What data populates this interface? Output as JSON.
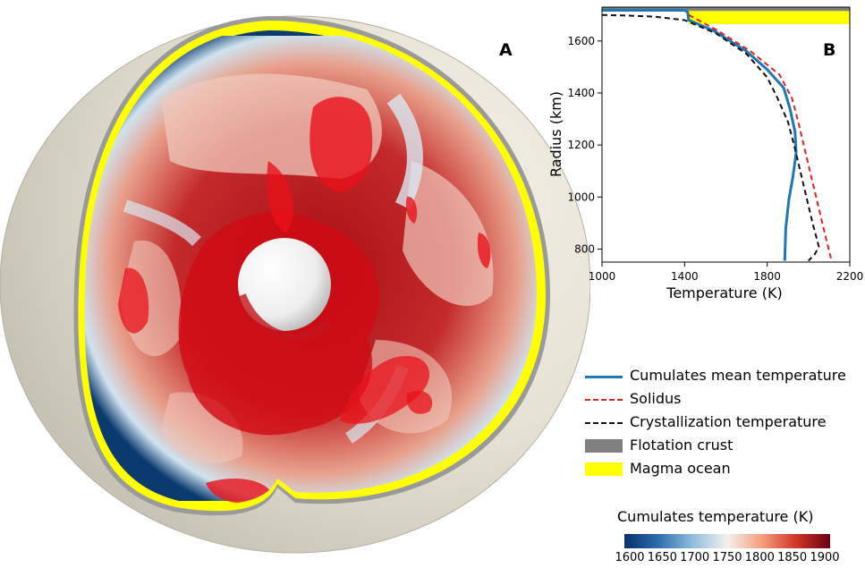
{
  "panel_a": {
    "letter": "A"
  },
  "panel_b": {
    "letter": "B"
  },
  "chart_data": {
    "type": "line",
    "xlabel": "Temperature (K)",
    "ylabel": "Radius (km)",
    "xlim": [
      1000,
      2200
    ],
    "ylim": [
      750,
      1730
    ],
    "xticks": [
      1000,
      1400,
      1800,
      2200
    ],
    "yticks": [
      800,
      1000,
      1200,
      1400,
      1600
    ],
    "grid": false,
    "series": [
      {
        "name": "Cumulates mean temperature",
        "color": "#1f77b4",
        "style": "solid",
        "x": [
          1000,
          1400,
          1415,
          1420,
          1540,
          1700,
          1800,
          1880,
          1910,
          1935,
          1940,
          1925,
          1905,
          1890,
          1885
        ],
        "y": [
          1718,
          1718,
          1710,
          1680,
          1640,
          1560,
          1490,
          1420,
          1340,
          1250,
          1170,
          1080,
          990,
          880,
          755
        ]
      },
      {
        "name": "Solidus",
        "color": "#e32222",
        "style": "dashed",
        "x": [
          1420,
          1560,
          1720,
          1860,
          1920,
          1950,
          1980,
          2010,
          2040,
          2070,
          2110
        ],
        "y": [
          1700,
          1640,
          1560,
          1470,
          1380,
          1290,
          1190,
          1090,
          990,
          890,
          760
        ]
      },
      {
        "name": "Crystallization temperature",
        "color": "#111111",
        "style": "dashed",
        "x": [
          1000,
          1100,
          1250,
          1400,
          1550,
          1700,
          1800,
          1850,
          1900,
          1930,
          1960,
          1990,
          2020,
          2050,
          2030,
          2000
        ],
        "y": [
          1700,
          1698,
          1694,
          1680,
          1630,
          1550,
          1460,
          1380,
          1290,
          1200,
          1100,
          1000,
          900,
          810,
          780,
          755
        ]
      }
    ],
    "bands": [
      {
        "name": "Flotation crust",
        "color": "#808080",
        "y": [
          1715,
          1730
        ]
      },
      {
        "name": "Magma ocean",
        "color": "#ffff00",
        "y": [
          1665,
          1715
        ],
        "x": [
          1420,
          2200
        ]
      }
    ]
  },
  "colorbar": {
    "title": "Cumulates temperature (K)",
    "ticks": [
      "1600",
      "1650",
      "1700",
      "1750",
      "1800",
      "1850",
      "1900"
    ],
    "colors": [
      "#08306b",
      "#2f6db0",
      "#8fbfdd",
      "#f5f0ee",
      "#f3a07e",
      "#d03628",
      "#6b0012"
    ]
  }
}
